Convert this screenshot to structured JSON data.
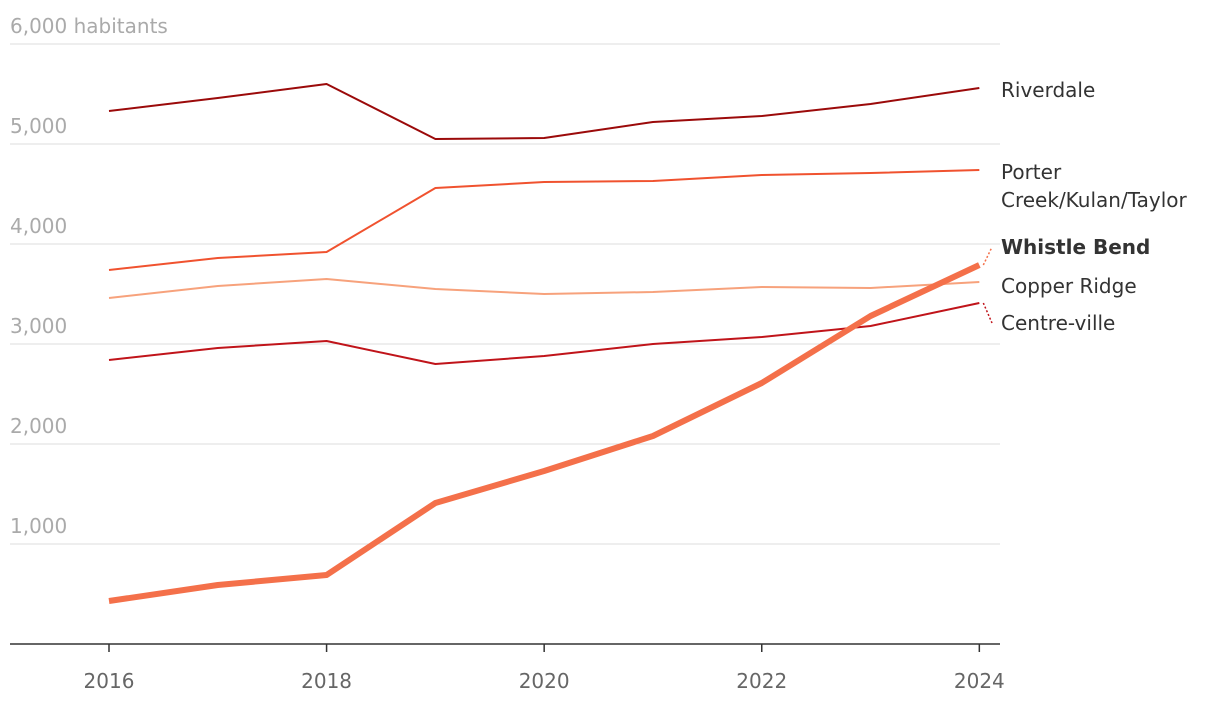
{
  "chart_data": {
    "type": "line",
    "x": [
      2016,
      2017,
      2018,
      2019,
      2020,
      2021,
      2022,
      2023,
      2024
    ],
    "xlim": [
      2015.09,
      2024.19
    ],
    "xticks": [
      2016,
      2018,
      2020,
      2022,
      2024
    ],
    "ylim": [
      0,
      6000
    ],
    "yticks": [
      {
        "value": 1000,
        "label": "1,000"
      },
      {
        "value": 2000,
        "label": "2,000"
      },
      {
        "value": 3000,
        "label": "3,000"
      },
      {
        "value": 4000,
        "label": "4,000"
      },
      {
        "value": 5000,
        "label": "5,000"
      },
      {
        "value": 6000,
        "label": "6,000 habitants"
      }
    ],
    "grid": true,
    "series": [
      {
        "name": "Riverdale",
        "color": "#9b0a0a",
        "values": [
          5330,
          5460,
          5600,
          5050,
          5060,
          5220,
          5280,
          5400,
          5560
        ]
      },
      {
        "name": "Porter Creek/Kulan/Taylor",
        "color": "#f0522f",
        "values": [
          3740,
          3860,
          3920,
          4560,
          4620,
          4630,
          4690,
          4710,
          4740
        ]
      },
      {
        "name": "Whistle Bend",
        "color": "#f4704a",
        "highlight": true,
        "values": [
          430,
          590,
          690,
          1410,
          1730,
          2080,
          2610,
          3280,
          3790
        ]
      },
      {
        "name": "Copper Ridge",
        "color": "#f7a27c",
        "values": [
          3460,
          3580,
          3650,
          3550,
          3500,
          3520,
          3570,
          3560,
          3620
        ]
      },
      {
        "name": "Centre-ville",
        "color": "#c0141a",
        "values": [
          2840,
          2960,
          3030,
          2800,
          2880,
          3000,
          3070,
          3180,
          3410
        ]
      }
    ]
  }
}
